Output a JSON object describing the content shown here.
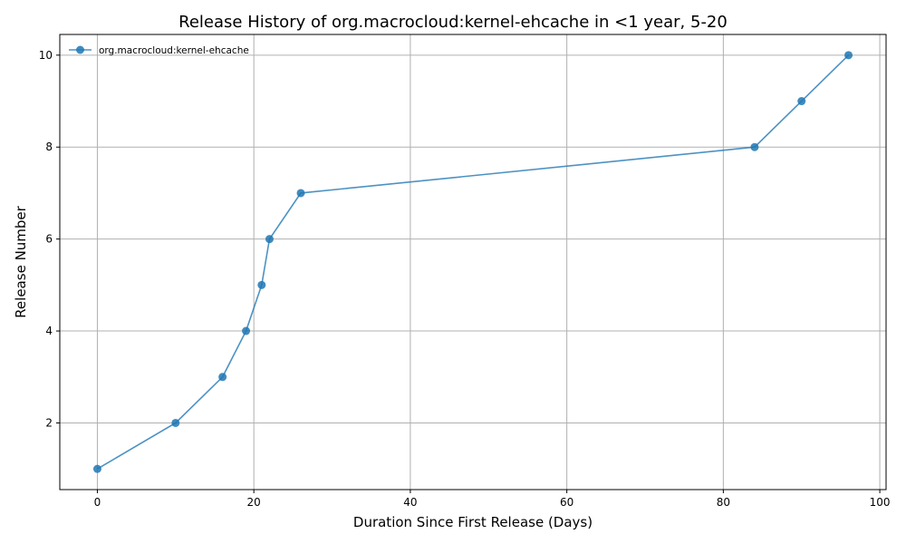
{
  "chart_data": {
    "type": "line",
    "title": "Release History of org.macrocloud:kernel-ehcache in <1 year, 5-20",
    "xlabel": "Duration Since First Release (Days)",
    "ylabel": "Release Number",
    "xlim": [
      -4.8,
      100.8
    ],
    "ylim": [
      0.55,
      10.45
    ],
    "xticks": [
      0,
      20,
      40,
      60,
      80,
      100
    ],
    "yticks": [
      2,
      4,
      6,
      8,
      10
    ],
    "grid": true,
    "legend_position": "top-left",
    "series": [
      {
        "name": "org.macrocloud:kernel-ehcache",
        "color": "#1f77b4",
        "marker": "circle",
        "x": [
          0,
          10,
          16,
          19,
          21,
          22,
          26,
          84,
          90,
          96
        ],
        "y": [
          1,
          2,
          3,
          4,
          5,
          6,
          7,
          8,
          9,
          10
        ]
      }
    ]
  }
}
